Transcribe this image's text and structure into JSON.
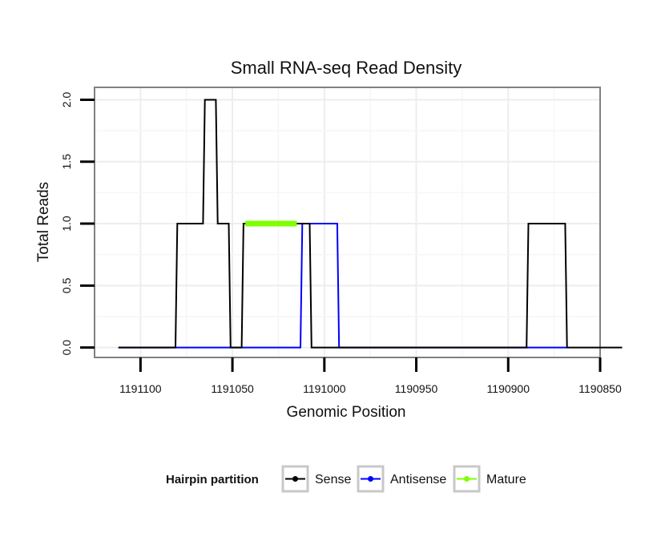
{
  "chart_data": {
    "type": "line",
    "title": "Small RNA-seq Read Density",
    "xlabel": "Genomic Position",
    "ylabel": "Total Reads",
    "x_reversed": true,
    "xlim": [
      1191125,
      1190850
    ],
    "ylim": [
      -0.08,
      2.1
    ],
    "x_ticks": [
      1191100,
      1191050,
      1191000,
      1190950,
      1190900,
      1190850
    ],
    "x_tick_labels": [
      "1191100",
      "1191050",
      "1191000",
      "1190950",
      "1190900",
      "1190850"
    ],
    "y_ticks": [
      0,
      0.5,
      1,
      1.5,
      2
    ],
    "y_tick_labels": [
      "0.0",
      "0.5",
      "1.0",
      "1.5",
      "2.0"
    ],
    "grid": true,
    "series": [
      {
        "name": "Antisense",
        "color": "#0000ff",
        "x": [
          1191112,
          1191055,
          1191050,
          1191013,
          1191012,
          1191008,
          1191007,
          1190993,
          1190992,
          1190890,
          1190888,
          1190868
        ],
        "values": [
          0,
          0,
          0,
          0,
          1,
          1,
          1,
          1,
          0,
          0,
          0,
          0
        ]
      },
      {
        "name": "Sense",
        "color": "#000000",
        "x": [
          1191112,
          1191081,
          1191080,
          1191066,
          1191065,
          1191059,
          1191058,
          1191052,
          1191051,
          1191045,
          1191044,
          1191043,
          1191042,
          1191008,
          1191007,
          1190890,
          1190889,
          1190869,
          1190868,
          1190838
        ],
        "values": [
          0,
          0,
          1,
          1,
          2,
          2,
          1,
          1,
          0,
          0,
          1,
          1,
          1,
          1,
          0,
          0,
          1,
          1,
          0,
          0
        ]
      },
      {
        "name": "Mature",
        "color": "#7fff00",
        "x": [
          1191043,
          1191015
        ],
        "values": [
          1,
          1
        ]
      }
    ],
    "legend": {
      "title": "Hairpin partition",
      "position": "bottom",
      "entries": [
        "Sense",
        "Antisense",
        "Mature"
      ]
    }
  },
  "legend_colors": {
    "Sense": "#000000",
    "Antisense": "#0000ff",
    "Mature": "#7fff00"
  }
}
